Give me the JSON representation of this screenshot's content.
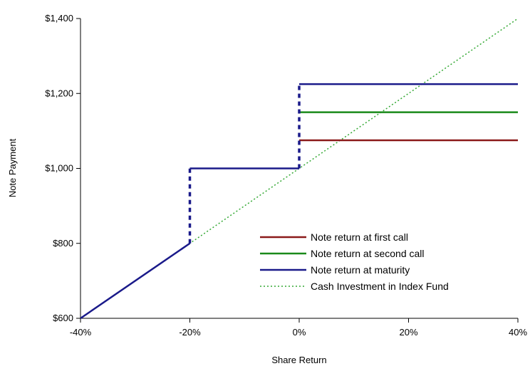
{
  "chart_data": {
    "type": "line",
    "title": "",
    "xlabel": "Share Return",
    "ylabel": "Note Payment",
    "xlim": [
      -40,
      40
    ],
    "ylim": [
      600,
      1400
    ],
    "x_ticks": [
      -40,
      -20,
      0,
      20,
      40
    ],
    "x_tick_labels": [
      "-40%",
      "-20%",
      "0%",
      "20%",
      "40%"
    ],
    "y_ticks": [
      600,
      800,
      1000,
      1200,
      1400
    ],
    "y_tick_labels": [
      "$600",
      "$800",
      "$1,000",
      "$1,200",
      "$1,400"
    ],
    "grid": false,
    "legend_position": "bottom-right",
    "series": [
      {
        "name": "Note return at first call",
        "color": "#8b1a1a",
        "style": "solid",
        "points": [
          [
            0,
            1075
          ],
          [
            40,
            1075
          ]
        ]
      },
      {
        "name": "Note return at second call",
        "color": "#1a8a1a",
        "style": "solid",
        "points": [
          [
            0,
            1150
          ],
          [
            40,
            1150
          ]
        ]
      },
      {
        "name": "Note return at maturity",
        "color": "#1a1a8a",
        "style": "solid",
        "segments": [
          {
            "style": "solid",
            "points": [
              [
                -40,
                600
              ],
              [
                -20,
                800
              ]
            ]
          },
          {
            "style": "dashed",
            "points": [
              [
                -20,
                800
              ],
              [
                -20,
                1000
              ]
            ]
          },
          {
            "style": "solid",
            "points": [
              [
                -20,
                1000
              ],
              [
                0,
                1000
              ]
            ]
          },
          {
            "style": "dashed",
            "points": [
              [
                0,
                1000
              ],
              [
                0,
                1225
              ]
            ]
          },
          {
            "style": "solid",
            "points": [
              [
                0,
                1225
              ],
              [
                40,
                1225
              ]
            ]
          }
        ]
      },
      {
        "name": "Cash Investment in Index Fund",
        "color": "#33a833",
        "style": "dotted",
        "points": [
          [
            -40,
            600
          ],
          [
            40,
            1400
          ]
        ]
      }
    ]
  }
}
